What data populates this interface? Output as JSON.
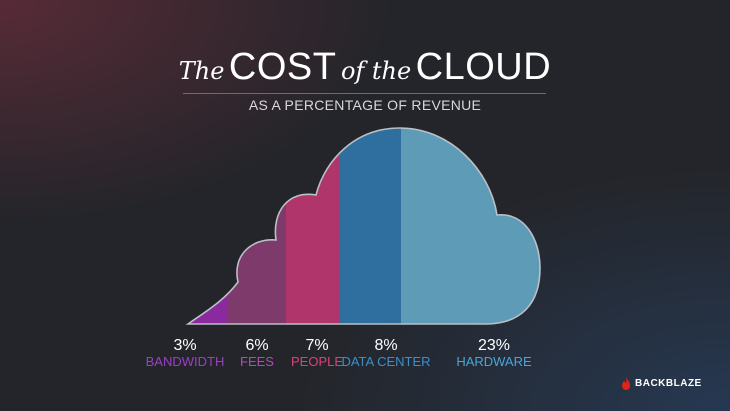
{
  "header": {
    "title_prefix": "The",
    "title_word1": "COST",
    "title_mid": "of the",
    "title_word2": "CLOUD",
    "subtitle": "AS A PERCENTAGE OF REVENUE"
  },
  "chart_data": {
    "type": "area",
    "title": "The COST of the CLOUD",
    "subtitle": "AS A PERCENTAGE OF REVENUE",
    "categories": [
      "BANDWIDTH",
      "FEES",
      "PEOPLE",
      "DATA CENTER",
      "HARDWARE"
    ],
    "values": [
      3,
      6,
      7,
      8,
      23
    ],
    "value_labels": [
      "3%",
      "6%",
      "7%",
      "8%",
      "23%"
    ],
    "unit": "%",
    "colors": [
      "#8a2a9e",
      "#7e3a6a",
      "#b0356a",
      "#2f6fa0",
      "#5d9bb7"
    ],
    "label_colors": [
      "#9b3fc4",
      "#b24bb8",
      "#e0407a",
      "#3d8fcc",
      "#4aa6d6"
    ]
  },
  "brand": {
    "name": "BACKBLAZE",
    "icon": "backblaze-flame-icon",
    "color": "#e2231a"
  }
}
